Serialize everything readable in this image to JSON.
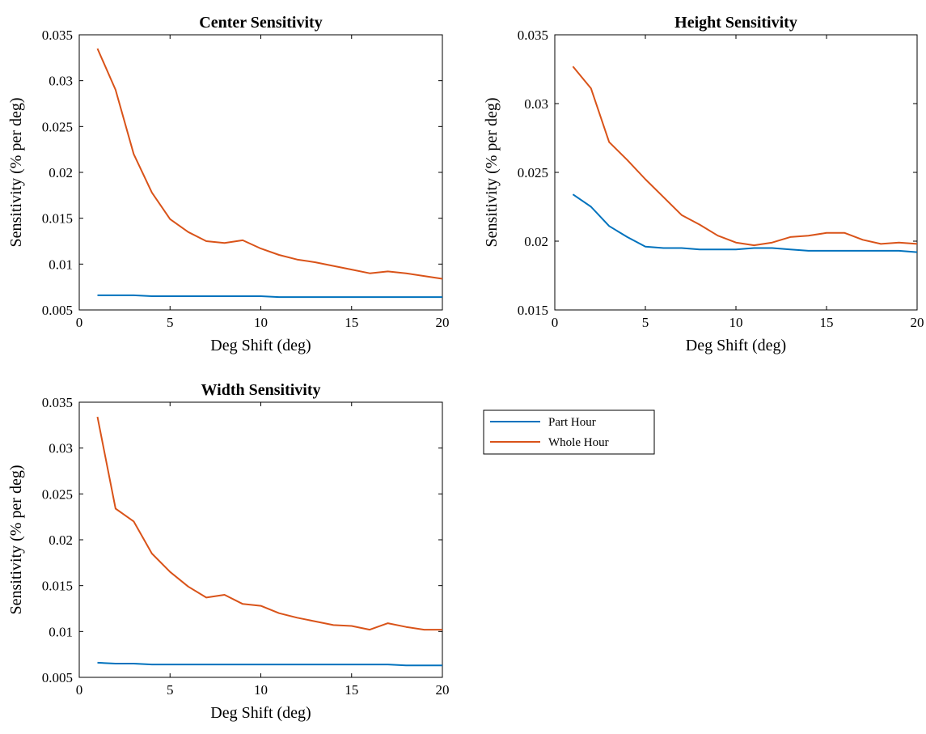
{
  "legend": {
    "entries": [
      {
        "label": "Part Hour",
        "color": "#0072BD"
      },
      {
        "label": "Whole Hour",
        "color": "#D95319"
      }
    ]
  },
  "chart_data": [
    {
      "type": "line",
      "title": "Center Sensitivity",
      "xlabel": "Deg Shift (deg)",
      "ylabel": "Sensitivity (% per deg)",
      "xlim": [
        0,
        20
      ],
      "ylim": [
        0.005,
        0.035
      ],
      "xticks": [
        0,
        5,
        10,
        15,
        20
      ],
      "yticks": [
        0.005,
        0.01,
        0.015,
        0.02,
        0.025,
        0.03,
        0.035
      ],
      "xtick_labels": [
        "0",
        "5",
        "10",
        "15",
        "20"
      ],
      "ytick_labels": [
        "0.005",
        "0.01",
        "0.015",
        "0.02",
        "0.025",
        "0.03",
        "0.035"
      ],
      "x": [
        1,
        2,
        3,
        4,
        5,
        6,
        7,
        8,
        9,
        10,
        11,
        12,
        13,
        14,
        15,
        16,
        17,
        18,
        19,
        20
      ],
      "series": [
        {
          "name": "Part Hour",
          "color": "#0072BD",
          "values": [
            0.0066,
            0.0066,
            0.0066,
            0.0065,
            0.0065,
            0.0065,
            0.0065,
            0.0065,
            0.0065,
            0.0065,
            0.0064,
            0.0064,
            0.0064,
            0.0064,
            0.0064,
            0.0064,
            0.0064,
            0.0064,
            0.0064,
            0.0064
          ]
        },
        {
          "name": "Whole Hour",
          "color": "#D95319",
          "values": [
            0.0335,
            0.029,
            0.022,
            0.0178,
            0.0149,
            0.0135,
            0.0125,
            0.0123,
            0.0126,
            0.0117,
            0.011,
            0.0105,
            0.0102,
            0.0098,
            0.0094,
            0.009,
            0.0092,
            0.009,
            0.0087,
            0.0084
          ]
        }
      ]
    },
    {
      "type": "line",
      "title": "Height Sensitivity",
      "xlabel": "Deg Shift (deg)",
      "ylabel": "Sensitivity (% per deg)",
      "xlim": [
        0,
        20
      ],
      "ylim": [
        0.015,
        0.035
      ],
      "xticks": [
        0,
        5,
        10,
        15,
        20
      ],
      "yticks": [
        0.015,
        0.02,
        0.025,
        0.03,
        0.035
      ],
      "xtick_labels": [
        "0",
        "5",
        "10",
        "15",
        "20"
      ],
      "ytick_labels": [
        "0.015",
        "0.02",
        "0.025",
        "0.03",
        "0.035"
      ],
      "x": [
        1,
        2,
        3,
        4,
        5,
        6,
        7,
        8,
        9,
        10,
        11,
        12,
        13,
        14,
        15,
        16,
        17,
        18,
        19,
        20
      ],
      "series": [
        {
          "name": "Part Hour",
          "color": "#0072BD",
          "values": [
            0.0234,
            0.0225,
            0.0211,
            0.0203,
            0.0196,
            0.0195,
            0.0195,
            0.0194,
            0.0194,
            0.0194,
            0.0195,
            0.0195,
            0.0194,
            0.0193,
            0.0193,
            0.0193,
            0.0193,
            0.0193,
            0.0193,
            0.0192
          ]
        },
        {
          "name": "Whole Hour",
          "color": "#D95319",
          "values": [
            0.0327,
            0.0311,
            0.0272,
            0.0259,
            0.0245,
            0.0232,
            0.0219,
            0.0212,
            0.0204,
            0.0199,
            0.0197,
            0.0199,
            0.0203,
            0.0204,
            0.0206,
            0.0206,
            0.0201,
            0.0198,
            0.0199,
            0.0198
          ]
        }
      ]
    },
    {
      "type": "line",
      "title": "Width Sensitivity",
      "xlabel": "Deg Shift (deg)",
      "ylabel": "Sensitivity (% per deg)",
      "xlim": [
        0,
        20
      ],
      "ylim": [
        0.005,
        0.035
      ],
      "xticks": [
        0,
        5,
        10,
        15,
        20
      ],
      "yticks": [
        0.005,
        0.01,
        0.015,
        0.02,
        0.025,
        0.03,
        0.035
      ],
      "xtick_labels": [
        "0",
        "5",
        "10",
        "15",
        "20"
      ],
      "ytick_labels": [
        "0.005",
        "0.01",
        "0.015",
        "0.02",
        "0.025",
        "0.03",
        "0.035"
      ],
      "x": [
        1,
        2,
        3,
        4,
        5,
        6,
        7,
        8,
        9,
        10,
        11,
        12,
        13,
        14,
        15,
        16,
        17,
        18,
        19,
        20
      ],
      "series": [
        {
          "name": "Part Hour",
          "color": "#0072BD",
          "values": [
            0.0066,
            0.0065,
            0.0065,
            0.0064,
            0.0064,
            0.0064,
            0.0064,
            0.0064,
            0.0064,
            0.0064,
            0.0064,
            0.0064,
            0.0064,
            0.0064,
            0.0064,
            0.0064,
            0.0064,
            0.0063,
            0.0063,
            0.0063
          ]
        },
        {
          "name": "Whole Hour",
          "color": "#D95319",
          "values": [
            0.0334,
            0.0234,
            0.022,
            0.0185,
            0.0165,
            0.0149,
            0.0137,
            0.014,
            0.013,
            0.0128,
            0.012,
            0.0115,
            0.0111,
            0.0107,
            0.0106,
            0.0102,
            0.0109,
            0.0105,
            0.0102,
            0.0102
          ]
        }
      ]
    }
  ]
}
